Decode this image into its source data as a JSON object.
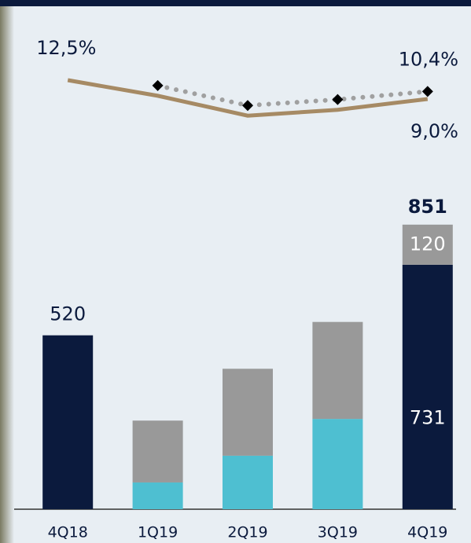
{
  "chart_data": [
    {
      "type": "stacked-bar",
      "categories": [
        "4Q18",
        "1Q19",
        "2Q19",
        "3Q19",
        "4Q19"
      ],
      "series": [
        {
          "color": "#0b1a3d",
          "values": [
            520,
            null,
            null,
            null,
            731
          ]
        },
        {
          "color": "#4ebfd1",
          "values": [
            null,
            80,
            160,
            270,
            null
          ]
        },
        {
          "color": "#999999",
          "values": [
            null,
            185,
            260,
            290,
            120
          ]
        }
      ],
      "totals": [
        null,
        null,
        null,
        null,
        851
      ],
      "ylim": [
        0,
        900
      ]
    },
    {
      "type": "line",
      "categories": [
        "4Q18",
        "1Q19",
        "2Q19",
        "3Q19",
        "4Q19"
      ],
      "series": [
        {
          "color": "#a68a64",
          "style": "solid",
          "values": [
            12.5,
            9.6,
            5.9,
            7.0,
            9.0
          ],
          "value_labels": [
            "12,5%",
            null,
            null,
            null,
            "9,0%"
          ]
        },
        {
          "color": "#a0a0a0",
          "style": "dotted",
          "marker": "diamond",
          "values": [
            null,
            11.5,
            7.8,
            8.9,
            10.4
          ],
          "value_labels": [
            null,
            null,
            null,
            null,
            "10,4%"
          ]
        }
      ],
      "ylim": [
        5,
        13
      ]
    }
  ]
}
